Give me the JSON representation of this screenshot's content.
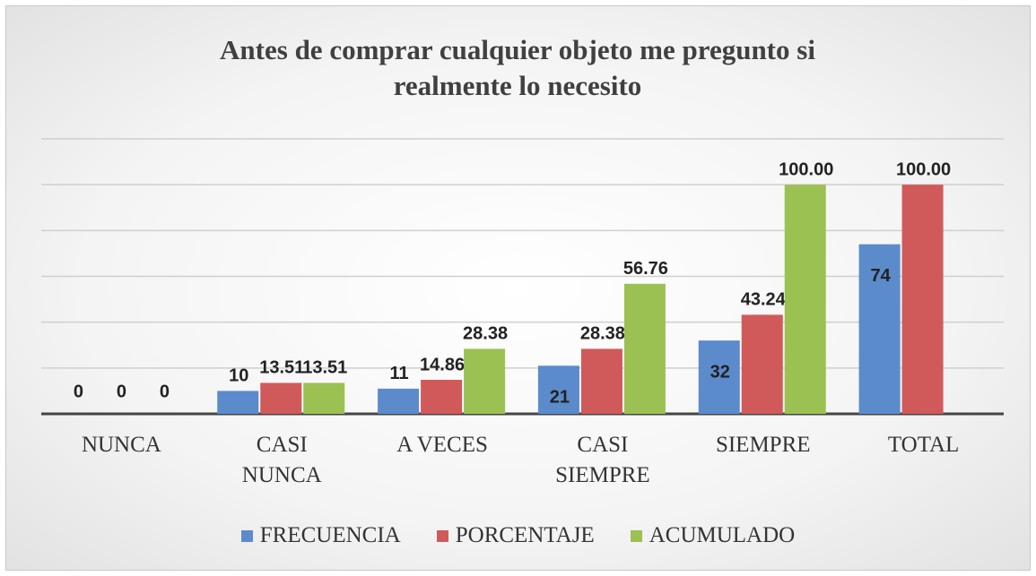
{
  "chart_data": {
    "type": "bar",
    "title": "Antes de comprar cualquier objeto me pregunto si realmente lo necesito",
    "categories": [
      "NUNCA",
      "CASI NUNCA",
      "A VECES",
      "CASI SIEMPRE",
      "SIEMPRE",
      "TOTAL"
    ],
    "series": [
      {
        "name": "FRECUENCIA",
        "color": "#5b8bcb",
        "values": [
          0,
          10,
          11,
          21,
          32,
          74
        ]
      },
      {
        "name": "PORCENTAJE",
        "color": "#d05a5a",
        "values": [
          0,
          13.51,
          14.86,
          28.38,
          43.24,
          100
        ],
        "value_labels": [
          "0",
          "13.51",
          "14.86",
          "28.38",
          "43.24",
          "100.00"
        ]
      },
      {
        "name": "ACUMULADO",
        "color": "#9bc152",
        "values": [
          0,
          13.51,
          28.38,
          56.76,
          100,
          null
        ],
        "value_labels": [
          "0",
          "13.51",
          "28.38",
          "56.76",
          "100.00",
          null
        ]
      }
    ],
    "ylim": [
      0,
      120
    ],
    "yticks": [
      0,
      20,
      40,
      60,
      80,
      100,
      120
    ],
    "grid": true,
    "legend": "bottom"
  }
}
